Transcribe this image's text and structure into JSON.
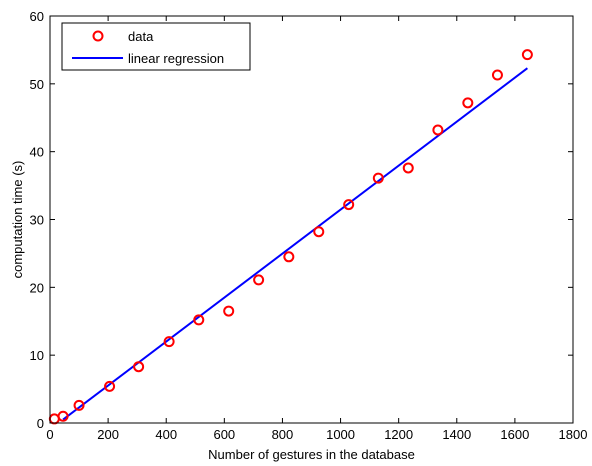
{
  "chart_data": {
    "type": "scatter",
    "title": "",
    "xlabel": "Number of gestures in the database",
    "ylabel": "computation time (s)",
    "xlim": [
      0,
      1800
    ],
    "ylim": [
      0,
      60
    ],
    "x_ticks": [
      0,
      200,
      400,
      600,
      800,
      1000,
      1200,
      1400,
      1600,
      1800
    ],
    "y_ticks": [
      0,
      10,
      20,
      30,
      40,
      50,
      60
    ],
    "x_tick_labels": [
      "0",
      "200",
      "400",
      "600",
      "800",
      "1000",
      "1200",
      "1400",
      "1600",
      "1800"
    ],
    "y_tick_labels": [
      "0",
      "10",
      "20",
      "30",
      "40",
      "50",
      "60"
    ],
    "grid": false,
    "legend_position": "top-left",
    "series": [
      {
        "name": "data",
        "kind": "markers",
        "marker": "circle",
        "color": "#ff0000",
        "points": [
          [
            15,
            0.6
          ],
          [
            45,
            1.0
          ],
          [
            100,
            2.6
          ],
          [
            205,
            5.4
          ],
          [
            305,
            8.3
          ],
          [
            410,
            12.0
          ],
          [
            512,
            15.2
          ],
          [
            615,
            16.5
          ],
          [
            718,
            21.1
          ],
          [
            822,
            24.5
          ],
          [
            925,
            28.2
          ],
          [
            1028,
            32.2
          ],
          [
            1130,
            36.1
          ],
          [
            1233,
            37.6
          ],
          [
            1335,
            43.2
          ],
          [
            1438,
            47.2
          ],
          [
            1540,
            51.3
          ],
          [
            1643,
            54.3
          ]
        ]
      },
      {
        "name": "linear regression",
        "kind": "line",
        "color": "#0000ff",
        "points": [
          [
            45,
            0.5
          ],
          [
            1643,
            52.3
          ]
        ]
      }
    ]
  }
}
